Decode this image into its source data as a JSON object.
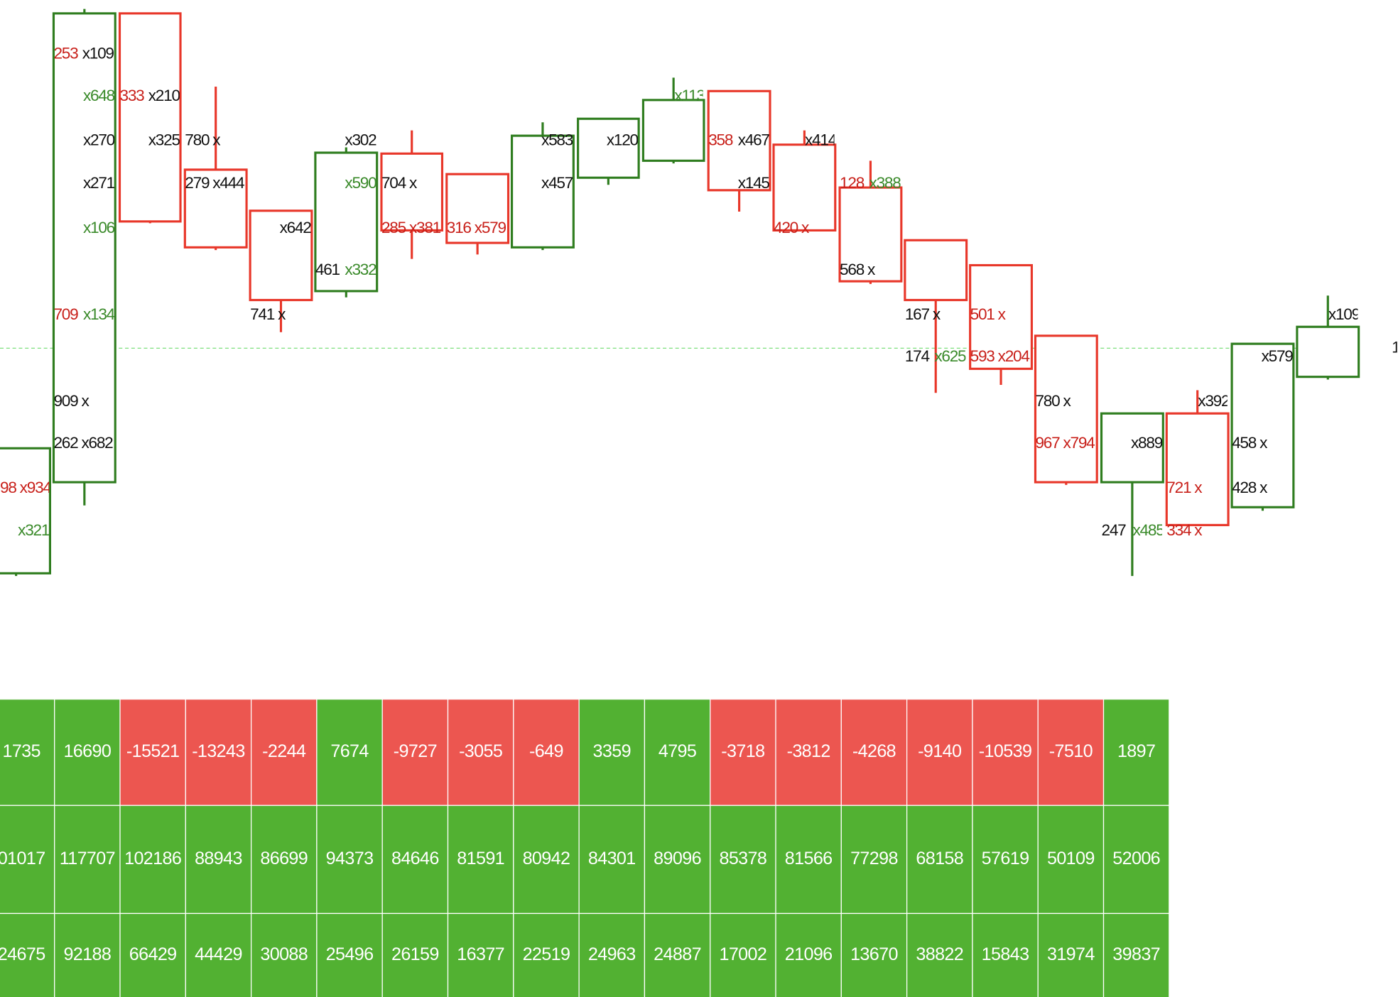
{
  "labels": [
    {
      "text": "253",
      "color": "red"
    },
    {
      "text": "x109",
      "color": "black"
    },
    {
      "text": "x648",
      "color": "green"
    },
    {
      "text": "333",
      "color": "red"
    },
    {
      "text": "x210",
      "color": "black"
    },
    {
      "text": "x270",
      "color": "black"
    },
    {
      "text": "x325",
      "color": "black"
    },
    {
      "text": "780 x",
      "color": "black"
    },
    {
      "text": "x271",
      "color": "black"
    },
    {
      "text": "279 x444",
      "color": "black"
    },
    {
      "text": "x106",
      "color": "green"
    },
    {
      "text": "x642",
      "color": "black"
    },
    {
      "text": "x302",
      "color": "black"
    },
    {
      "text": "x590",
      "color": "green"
    },
    {
      "text": "704 x",
      "color": "black"
    },
    {
      "text": "285 x381",
      "color": "red"
    },
    {
      "text": "316 x579",
      "color": "red"
    },
    {
      "text": "461",
      "color": "black"
    },
    {
      "text": "x332",
      "color": "green"
    },
    {
      "text": "741 x",
      "color": "black"
    },
    {
      "text": "709",
      "color": "red"
    },
    {
      "text": "x134",
      "color": "green"
    },
    {
      "text": "909 x",
      "color": "black"
    },
    {
      "text": "262 x682",
      "color": "black"
    },
    {
      "text": "98 x934",
      "color": "red"
    },
    {
      "text": "x321",
      "color": "green"
    },
    {
      "text": "x583",
      "color": "black"
    },
    {
      "text": "x120",
      "color": "black"
    },
    {
      "text": "x457",
      "color": "black"
    },
    {
      "text": "x113",
      "color": "green"
    },
    {
      "text": "358",
      "color": "red"
    },
    {
      "text": "x467",
      "color": "black"
    },
    {
      "text": "x414",
      "color": "black"
    },
    {
      "text": "x145",
      "color": "black"
    },
    {
      "text": "420 x",
      "color": "red"
    },
    {
      "text": "128",
      "color": "red"
    },
    {
      "text": "x388",
      "color": "green"
    },
    {
      "text": "568 x",
      "color": "black"
    },
    {
      "text": "167 x",
      "color": "black"
    },
    {
      "text": "501 x",
      "color": "red"
    },
    {
      "text": "174",
      "color": "black"
    },
    {
      "text": "x625",
      "color": "green"
    },
    {
      "text": "593 x204",
      "color": "red"
    },
    {
      "text": "780 x",
      "color": "black"
    },
    {
      "text": "967 x794",
      "color": "red"
    },
    {
      "text": "x889",
      "color": "black"
    },
    {
      "text": "x392",
      "color": "black"
    },
    {
      "text": "x579",
      "color": "black"
    },
    {
      "text": "x109",
      "color": "black"
    },
    {
      "text": "458 x",
      "color": "black"
    },
    {
      "text": "428 x",
      "color": "black"
    },
    {
      "text": "721 x",
      "color": "red"
    },
    {
      "text": "247",
      "color": "black"
    },
    {
      "text": "x485",
      "color": "green"
    },
    {
      "text": "334 x",
      "color": "red"
    },
    {
      "text": "1",
      "color": "black"
    }
  ],
  "table": {
    "rows": [
      [
        1735,
        16690,
        -15521,
        -13243,
        -2244,
        7674,
        -9727,
        -3055,
        -649,
        3359,
        4795,
        -3718,
        -3812,
        -4268,
        -9140,
        -10539,
        -7510,
        1897
      ],
      [
        "01017",
        117707,
        102186,
        88943,
        86699,
        94373,
        84646,
        81591,
        80942,
        84301,
        89096,
        85378,
        81566,
        77298,
        68158,
        57619,
        50109,
        52006
      ],
      [
        24675,
        92188,
        66429,
        44429,
        30088,
        25496,
        26159,
        16377,
        22519,
        24963,
        24887,
        17002,
        21096,
        13670,
        38822,
        15843,
        31974,
        39837
      ]
    ]
  }
}
